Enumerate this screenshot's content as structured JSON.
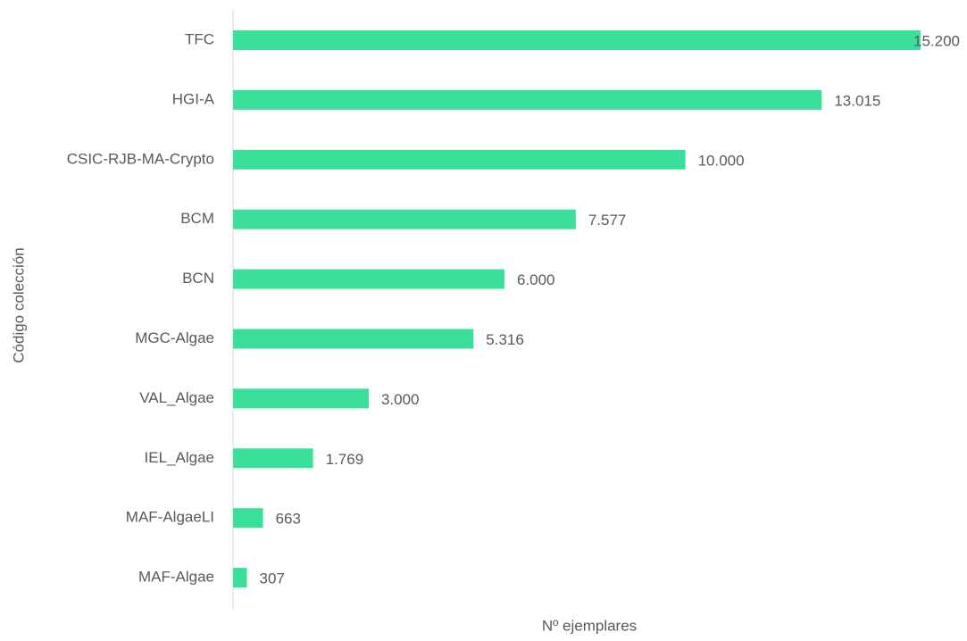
{
  "chart_data": {
    "type": "bar",
    "orientation": "horizontal",
    "x_label": "Nº ejemplares",
    "y_label": "Código colección",
    "categories": [
      "TFC",
      "HGI-A",
      "CSIC-RJB-MA-Crypto",
      "BCM",
      "BCN",
      "MGC-Algae",
      "VAL_Algae",
      "IEL_Algae",
      "MAF-AlgaeLI",
      "MAF-Algae"
    ],
    "values": [
      15200,
      13015,
      10000,
      7577,
      6000,
      5316,
      3000,
      1769,
      663,
      307
    ],
    "value_labels": [
      "15.200",
      "13.015",
      "10.000",
      "7.577",
      "6.000",
      "5.316",
      "3.000",
      "1.769",
      "663",
      "307"
    ],
    "color": "#3ae09a",
    "xlim": [
      0,
      15200
    ]
  }
}
